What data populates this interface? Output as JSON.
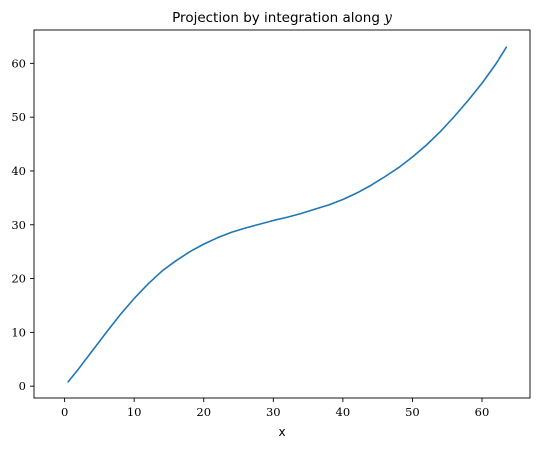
{
  "chart_data": {
    "type": "line",
    "title": "Projection by integration along ",
    "title_variable": "y",
    "xlabel": "x",
    "ylabel": "",
    "xlim": [
      -4.4,
      66.9
    ],
    "ylim": [
      -2.2,
      66.2
    ],
    "xticks": [
      0,
      10,
      20,
      30,
      40,
      50,
      60
    ],
    "yticks": [
      0,
      10,
      20,
      30,
      40,
      50,
      60
    ],
    "grid": false,
    "line_color": "#1f77b4",
    "series": [
      {
        "x": [
          0.5,
          2,
          4,
          6,
          8,
          10,
          12,
          14,
          16,
          18,
          20,
          22,
          24,
          26,
          28,
          30,
          32,
          34,
          36,
          38,
          40,
          42,
          44,
          46,
          48,
          50,
          52,
          54,
          56,
          58,
          60,
          62,
          63.5
        ],
        "values": [
          0.8,
          3.2,
          6.6,
          10.0,
          13.3,
          16.3,
          19.0,
          21.4,
          23.3,
          25.0,
          26.4,
          27.6,
          28.6,
          29.4,
          30.1,
          30.8,
          31.4,
          32.1,
          32.9,
          33.7,
          34.7,
          35.9,
          37.3,
          38.9,
          40.6,
          42.6,
          44.8,
          47.3,
          50.1,
          53.1,
          56.3,
          59.9,
          63.0
        ]
      }
    ]
  }
}
